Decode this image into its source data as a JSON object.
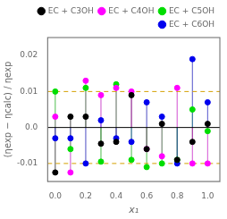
{
  "chart_data": {
    "type": "scatter",
    "xlabel": "x₁",
    "ylabel": "(ηexp − ηcalc) / ηexp",
    "xlim": [
      -0.05,
      1.08
    ],
    "ylim": [
      -0.015,
      0.025
    ],
    "xticks": [
      {
        "value": 0.0,
        "label": "0.0"
      },
      0.2,
      0.4,
      0.6,
      0.8,
      {
        "value": 1.0,
        "label": "1.0"
      }
    ],
    "yticks": [
      -0.01,
      {
        "value": 0.0,
        "label": "0.0"
      },
      0.01,
      0.02
    ],
    "hline": 0.0,
    "dashed_lines": [
      -0.01,
      0.01
    ],
    "grid": false,
    "legend": "upper right",
    "x": [
      0.0,
      0.1,
      0.2,
      0.3,
      0.4,
      0.5,
      0.6,
      0.7,
      0.8,
      0.9,
      1.0
    ],
    "series": [
      {
        "name": "EC + C3OH",
        "color": "#000000",
        "marker": "circle",
        "values": [
          -0.0125,
          0.003,
          0.003,
          -0.0045,
          -0.004,
          0.009,
          -0.006,
          0.001,
          -0.009,
          -0.004,
          0.001
        ]
      },
      {
        "name": "EC + C4OH",
        "color": "#ff00ff",
        "marker": "circle",
        "values": [
          0.003,
          -0.0125,
          0.013,
          0.009,
          0.011,
          0.01,
          -0.006,
          -0.008,
          0.011,
          -0.01,
          -0.01
        ]
      },
      {
        "name": "EC + C5OH",
        "color": "#00dd00",
        "marker": "circle",
        "values": [
          0.01,
          -0.006,
          0.011,
          -0.0095,
          0.012,
          -0.009,
          -0.011,
          -0.01,
          -0.009,
          0.005,
          -0.001
        ]
      },
      {
        "name": "EC + C6OH",
        "color": "#0000ee",
        "marker": "circle",
        "values": [
          -0.003,
          -0.003,
          -0.01,
          0.002,
          -0.003,
          -0.004,
          0.007,
          0.003,
          -0.01,
          0.019,
          0.007
        ]
      }
    ]
  }
}
